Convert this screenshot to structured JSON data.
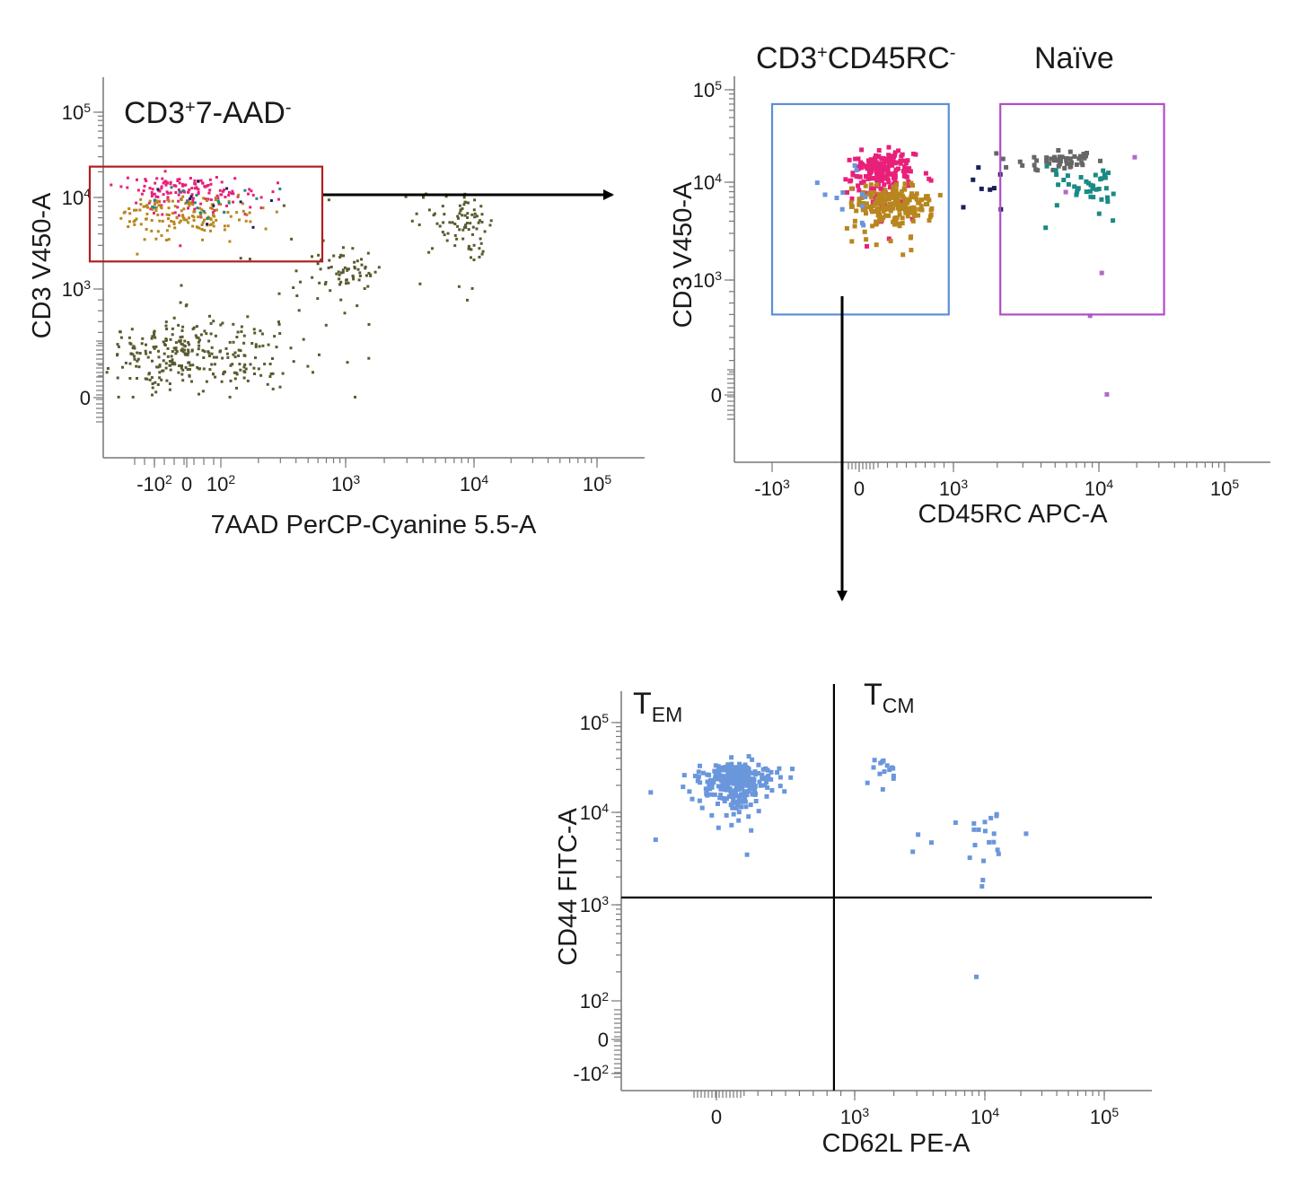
{
  "colors": {
    "olive": "#5a5a2e",
    "magenta": "#e8207a",
    "gold": "#b8861e",
    "gray": "#666666",
    "teal": "#1a8a84",
    "navy": "#1a1f5a",
    "blue": "#6a96dc",
    "purple": "#b06ac8",
    "gate_red": "#b01e1e",
    "gate_blue": "#5b8fd6",
    "gate_purple": "#b44cc8"
  },
  "chart_data": [
    {
      "id": "plot1",
      "type": "scatter",
      "xlabel": "7AAD PerCP-Cyanine 5.5-A",
      "ylabel": "CD3 V450-A",
      "x_scale": "biexponential",
      "y_scale": "biexponential",
      "x_ticks": [
        {
          "value": -100,
          "label": "-10",
          "sup": "2"
        },
        {
          "value": 0,
          "label": "0",
          "sup": ""
        },
        {
          "value": 100,
          "label": "10",
          "sup": "2"
        },
        {
          "value": 1000,
          "label": "10",
          "sup": "3"
        },
        {
          "value": 10000,
          "label": "10",
          "sup": "4"
        },
        {
          "value": 100000,
          "label": "10",
          "sup": "5"
        }
      ],
      "y_ticks": [
        {
          "value": 0,
          "label": "0",
          "sup": ""
        },
        {
          "value": 1000,
          "label": "10",
          "sup": "3"
        },
        {
          "value": 10000,
          "label": "10",
          "sup": "4"
        },
        {
          "value": 100000,
          "label": "10",
          "sup": "5"
        }
      ],
      "gates": [
        {
          "name": "CD3+7-AAD-",
          "label_main": "CD3",
          "label_sup1": "+",
          "label_mid": "7-AAD",
          "label_sup2": "-",
          "x_range": [
            -300,
            650
          ],
          "y_range": [
            2000,
            23000
          ],
          "color": "gate_red"
        }
      ],
      "populations": [
        {
          "name": "olive-low",
          "color": "olive",
          "n": 300,
          "x_center": 0,
          "x_spread": 260,
          "y_center": 400,
          "y_spread": 320,
          "size": 3
        },
        {
          "name": "olive-mid",
          "color": "olive",
          "n": 90,
          "x_center": 900,
          "x_spread": 900,
          "y_center": 1500,
          "y_spread": 1300,
          "size": 3
        },
        {
          "name": "olive-high",
          "color": "olive",
          "n": 90,
          "x_center": 8500,
          "x_spread": 5500,
          "y_center": 5500,
          "y_spread": 4500,
          "size": 3
        },
        {
          "name": "magenta-gated",
          "color": "magenta",
          "n": 150,
          "x_center": 0,
          "x_spread": 180,
          "y_center": 12000,
          "y_spread": 5000,
          "size": 3
        },
        {
          "name": "gold-gated",
          "color": "gold",
          "n": 150,
          "x_center": 0,
          "x_spread": 180,
          "y_center": 6500,
          "y_spread": 3000,
          "size": 3
        },
        {
          "name": "teal-gated",
          "color": "teal",
          "n": 20,
          "x_center": 50,
          "x_spread": 200,
          "y_center": 10000,
          "y_spread": 4500,
          "size": 3
        },
        {
          "name": "navy-gated",
          "color": "navy",
          "n": 10,
          "x_center": 50,
          "x_spread": 200,
          "y_center": 9000,
          "y_spread": 4500,
          "size": 3
        }
      ]
    },
    {
      "id": "plot2",
      "type": "scatter",
      "xlabel": "CD45RC APC-A",
      "ylabel": "CD3 V450-A",
      "x_scale": "biexponential",
      "y_scale": "biexponential",
      "x_ticks": [
        {
          "value": -1000,
          "label": "-10",
          "sup": "3"
        },
        {
          "value": 0,
          "label": "0",
          "sup": ""
        },
        {
          "value": 1000,
          "label": "10",
          "sup": "3"
        },
        {
          "value": 10000,
          "label": "10",
          "sup": "4"
        },
        {
          "value": 100000,
          "label": "10",
          "sup": "5"
        }
      ],
      "y_ticks": [
        {
          "value": 0,
          "label": "0",
          "sup": ""
        },
        {
          "value": 1000,
          "label": "10",
          "sup": "3"
        },
        {
          "value": 10000,
          "label": "10",
          "sup": "4"
        },
        {
          "value": 100000,
          "label": "10",
          "sup": "5"
        }
      ],
      "gates": [
        {
          "name": "CD3+CD45RC-",
          "label_main": "CD3",
          "label_sup1": "+",
          "label_mid": "CD45RC",
          "label_sup2": "-",
          "x_range": [
            -1000,
            950
          ],
          "y_range": [
            700,
            70000
          ],
          "color": "gate_blue"
        },
        {
          "name": "Naïve",
          "label_main": "Naïve",
          "label_sup1": "",
          "label_mid": "",
          "label_sup2": "",
          "x_range": [
            2100,
            33000
          ],
          "y_range": [
            700,
            70000
          ],
          "color": "gate_purple"
        }
      ],
      "populations": [
        {
          "name": "magenta-neg",
          "color": "magenta",
          "n": 200,
          "x_center": 250,
          "x_spread": 320,
          "y_center": 13000,
          "y_spread": 7000,
          "size": 5
        },
        {
          "name": "gold-neg",
          "color": "gold",
          "n": 200,
          "x_center": 350,
          "x_spread": 360,
          "y_center": 6000,
          "y_spread": 2800,
          "size": 5
        },
        {
          "name": "blue-neg",
          "color": "blue",
          "n": 12,
          "x_center": 0,
          "x_spread": 450,
          "y_center": 8000,
          "y_spread": 5000,
          "size": 5
        },
        {
          "name": "gray-naive",
          "color": "gray",
          "n": 50,
          "x_center": 5500,
          "x_spread": 3300,
          "y_center": 17000,
          "y_spread": 4000,
          "size": 5
        },
        {
          "name": "teal-naive",
          "color": "teal",
          "n": 40,
          "x_center": 9000,
          "x_spread": 5000,
          "y_center": 9000,
          "y_spread": 5000,
          "size": 5
        },
        {
          "name": "navy-mid",
          "color": "navy",
          "n": 8,
          "x_center": 1700,
          "x_spread": 500,
          "y_center": 10000,
          "y_spread": 5000,
          "size": 5
        },
        {
          "name": "purple-naive",
          "color": "purple",
          "n": 5,
          "x_center": 14000,
          "x_spread": 9000,
          "y_center": 12000,
          "y_spread": 15000,
          "size": 5
        }
      ]
    },
    {
      "id": "plot3",
      "type": "scatter",
      "xlabel": "CD62L PE-A",
      "ylabel": "CD44 FITC-A",
      "x_scale": "biexponential",
      "y_scale": "biexponential",
      "x_ticks": [
        {
          "value": 0,
          "label": "0",
          "sup": ""
        },
        {
          "value": 1000,
          "label": "10",
          "sup": "3"
        },
        {
          "value": 10000,
          "label": "10",
          "sup": "4"
        },
        {
          "value": 100000,
          "label": "10",
          "sup": "5"
        }
      ],
      "y_ticks": [
        {
          "value": -100,
          "label": "-10",
          "sup": "2"
        },
        {
          "value": 0,
          "label": "0",
          "sup": ""
        },
        {
          "value": 100,
          "label": "10",
          "sup": "2"
        },
        {
          "value": 1000,
          "label": "10",
          "sup": "3"
        },
        {
          "value": 10000,
          "label": "10",
          "sup": "4"
        },
        {
          "value": 100000,
          "label": "10",
          "sup": "5"
        }
      ],
      "quadrant": {
        "x": 850,
        "y": 1200
      },
      "quadrant_labels": [
        {
          "main": "T",
          "sub": "EM"
        },
        {
          "main": "T",
          "sub": "CM"
        }
      ],
      "populations": [
        {
          "name": "tem",
          "color": "blue",
          "n": 300,
          "x_center": 150,
          "x_spread": 230,
          "y_center": 22000,
          "y_spread": 11000,
          "size": 5
        },
        {
          "name": "tcm-high",
          "color": "blue",
          "n": 15,
          "x_center": 1600,
          "x_spread": 600,
          "y_center": 30000,
          "y_spread": 12000,
          "size": 5
        },
        {
          "name": "tcm-low",
          "color": "blue",
          "n": 25,
          "x_center": 9000,
          "x_spread": 9000,
          "y_center": 5000,
          "y_spread": 5000,
          "size": 5
        }
      ]
    }
  ]
}
